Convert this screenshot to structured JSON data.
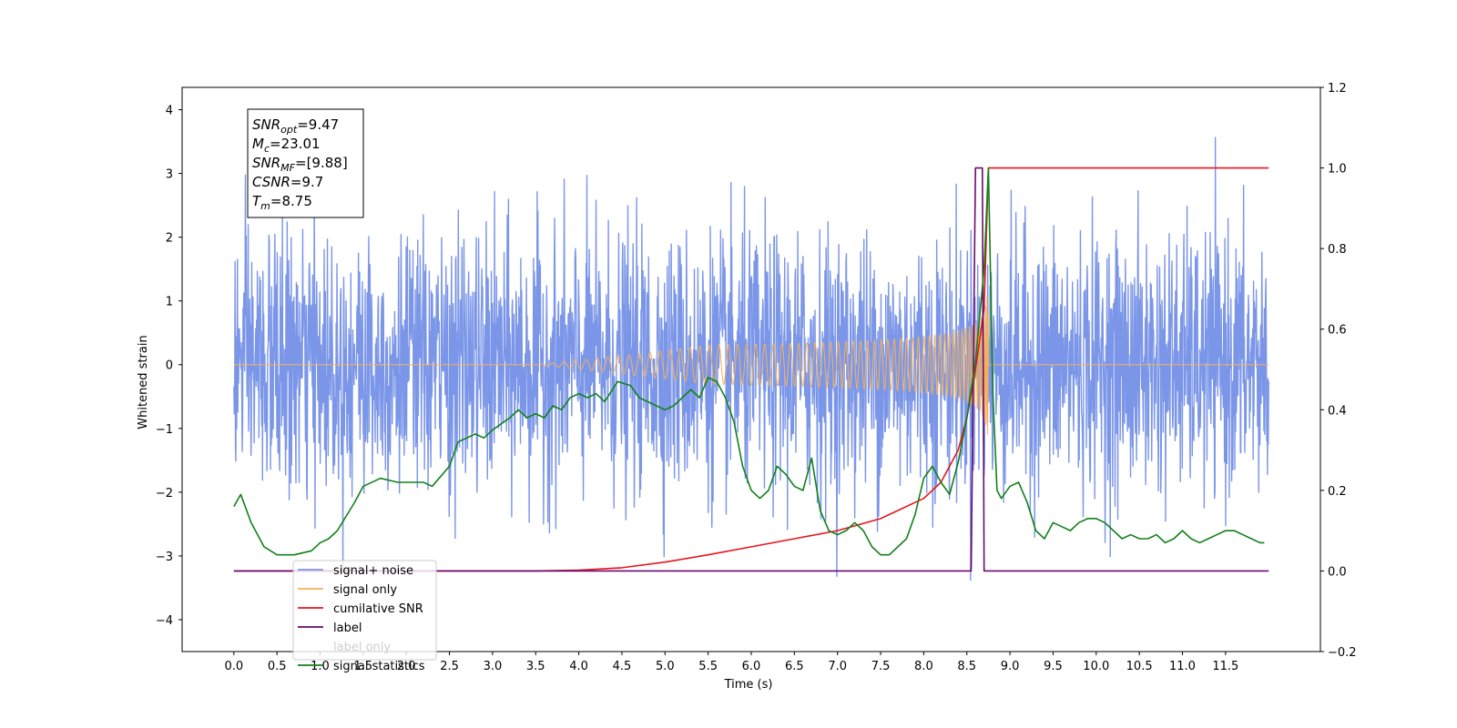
{
  "chart_data": {
    "type": "line",
    "xlabel": "Time (s)",
    "ylabel_left": "Whitened strain",
    "ylabel_right": "",
    "x_range": [
      -0.6,
      12.6
    ],
    "ylim_left": [
      -4.5,
      4.35
    ],
    "ylim_right": [
      -0.2,
      1.2
    ],
    "x_ticks": [
      "0.0",
      "0.5",
      "1.0",
      "1.5",
      "2.0",
      "2.5",
      "3.0",
      "3.5",
      "4.0",
      "4.5",
      "5.0",
      "5.5",
      "6.0",
      "6.5",
      "7.0",
      "7.5",
      "8.0",
      "8.5",
      "9.0",
      "9.5",
      "10.0",
      "10.5",
      "11.0",
      "11.5"
    ],
    "y_ticks_left": [
      "4",
      "3",
      "2",
      "1",
      "0",
      "−1",
      "−2",
      "−3",
      "−4"
    ],
    "y_ticks_right": [
      "1.2",
      "1.0",
      "0.8",
      "0.6",
      "0.4",
      "0.2",
      "0.0",
      "−0.2"
    ],
    "legend_position": "lower-left",
    "grid": false,
    "info_box": {
      "lines": [
        {
          "base": "SNR",
          "sub": "opt",
          "value": "=9.47"
        },
        {
          "base": "M",
          "sub": "c",
          "value": "=23.01"
        },
        {
          "base": "SNR",
          "sub": "MF",
          "value": "=[9.88]"
        },
        {
          "base": "CSNR",
          "sub": "",
          "value": "=9.7"
        },
        {
          "base": "T",
          "sub": "m",
          "value": "=8.75"
        }
      ]
    },
    "series": [
      {
        "name": "signal+ noise",
        "axis": "left",
        "color": "#7b96e8",
        "kind": "noise",
        "x_start": 0.0,
        "x_end": 12.0,
        "sigma": 1.0
      },
      {
        "name": "signal only",
        "axis": "left",
        "color": "#f5b15a",
        "kind": "chirp",
        "x_start": 0.0,
        "x_end": 12.0,
        "merger_time": 8.75,
        "peak_amplitude": 1.1
      },
      {
        "name": "cumilative SNR",
        "axis": "right",
        "color": "#e8141c",
        "points": [
          [
            0.0,
            0.0
          ],
          [
            3.5,
            0.0
          ],
          [
            4.0,
            0.002
          ],
          [
            4.5,
            0.008
          ],
          [
            5.0,
            0.022
          ],
          [
            5.5,
            0.04
          ],
          [
            6.0,
            0.06
          ],
          [
            6.5,
            0.08
          ],
          [
            7.0,
            0.1
          ],
          [
            7.5,
            0.13
          ],
          [
            8.0,
            0.18
          ],
          [
            8.2,
            0.22
          ],
          [
            8.4,
            0.3
          ],
          [
            8.5,
            0.38
          ],
          [
            8.6,
            0.5
          ],
          [
            8.7,
            0.65
          ],
          [
            8.75,
            1.0
          ],
          [
            12.0,
            1.0
          ]
        ]
      },
      {
        "name": "label",
        "axis": "right",
        "color": "#6a0a6e",
        "points": [
          [
            0.0,
            0.0
          ],
          [
            8.55,
            0.0
          ],
          [
            8.6,
            1.0
          ],
          [
            8.68,
            1.0
          ],
          [
            8.7,
            0.0
          ],
          [
            12.0,
            0.0
          ]
        ]
      },
      {
        "name": "label only",
        "axis": "right",
        "color": "#d8d8d8",
        "hidden_line": true,
        "points": []
      },
      {
        "name": "signal statistics",
        "axis": "right",
        "color": "#12801a",
        "points": [
          [
            0.0,
            0.16
          ],
          [
            0.08,
            0.19
          ],
          [
            0.2,
            0.12
          ],
          [
            0.35,
            0.06
          ],
          [
            0.5,
            0.04
          ],
          [
            0.7,
            0.04
          ],
          [
            0.9,
            0.05
          ],
          [
            1.0,
            0.07
          ],
          [
            1.1,
            0.08
          ],
          [
            1.2,
            0.1
          ],
          [
            1.4,
            0.17
          ],
          [
            1.5,
            0.21
          ],
          [
            1.7,
            0.23
          ],
          [
            1.9,
            0.22
          ],
          [
            2.0,
            0.22
          ],
          [
            2.2,
            0.22
          ],
          [
            2.3,
            0.21
          ],
          [
            2.5,
            0.26
          ],
          [
            2.6,
            0.32
          ],
          [
            2.7,
            0.33
          ],
          [
            2.8,
            0.34
          ],
          [
            2.9,
            0.33
          ],
          [
            3.0,
            0.35
          ],
          [
            3.2,
            0.38
          ],
          [
            3.3,
            0.4
          ],
          [
            3.4,
            0.38
          ],
          [
            3.5,
            0.39
          ],
          [
            3.6,
            0.38
          ],
          [
            3.7,
            0.41
          ],
          [
            3.8,
            0.4
          ],
          [
            3.9,
            0.43
          ],
          [
            4.0,
            0.44
          ],
          [
            4.1,
            0.43
          ],
          [
            4.2,
            0.44
          ],
          [
            4.3,
            0.42
          ],
          [
            4.45,
            0.47
          ],
          [
            4.6,
            0.46
          ],
          [
            4.7,
            0.43
          ],
          [
            4.8,
            0.42
          ],
          [
            4.9,
            0.41
          ],
          [
            5.0,
            0.4
          ],
          [
            5.1,
            0.41
          ],
          [
            5.2,
            0.43
          ],
          [
            5.3,
            0.45
          ],
          [
            5.4,
            0.43
          ],
          [
            5.5,
            0.48
          ],
          [
            5.6,
            0.47
          ],
          [
            5.7,
            0.43
          ],
          [
            5.8,
            0.37
          ],
          [
            5.9,
            0.26
          ],
          [
            6.0,
            0.2
          ],
          [
            6.1,
            0.18
          ],
          [
            6.2,
            0.2
          ],
          [
            6.3,
            0.26
          ],
          [
            6.4,
            0.24
          ],
          [
            6.5,
            0.21
          ],
          [
            6.6,
            0.2
          ],
          [
            6.7,
            0.28
          ],
          [
            6.8,
            0.15
          ],
          [
            6.9,
            0.1
          ],
          [
            7.0,
            0.09
          ],
          [
            7.1,
            0.1
          ],
          [
            7.2,
            0.12
          ],
          [
            7.3,
            0.1
          ],
          [
            7.4,
            0.06
          ],
          [
            7.5,
            0.04
          ],
          [
            7.6,
            0.04
          ],
          [
            7.7,
            0.06
          ],
          [
            7.8,
            0.08
          ],
          [
            7.9,
            0.14
          ],
          [
            8.0,
            0.23
          ],
          [
            8.1,
            0.26
          ],
          [
            8.2,
            0.22
          ],
          [
            8.3,
            0.19
          ],
          [
            8.4,
            0.27
          ],
          [
            8.5,
            0.38
          ],
          [
            8.6,
            0.52
          ],
          [
            8.7,
            0.75
          ],
          [
            8.75,
            1.0
          ],
          [
            8.8,
            0.45
          ],
          [
            8.85,
            0.2
          ],
          [
            8.9,
            0.18
          ],
          [
            9.0,
            0.21
          ],
          [
            9.1,
            0.22
          ],
          [
            9.2,
            0.17
          ],
          [
            9.3,
            0.1
          ],
          [
            9.4,
            0.08
          ],
          [
            9.5,
            0.12
          ],
          [
            9.6,
            0.11
          ],
          [
            9.7,
            0.1
          ],
          [
            9.8,
            0.12
          ],
          [
            9.9,
            0.13
          ],
          [
            10.0,
            0.13
          ],
          [
            10.1,
            0.12
          ],
          [
            10.2,
            0.1
          ],
          [
            10.3,
            0.08
          ],
          [
            10.4,
            0.09
          ],
          [
            10.5,
            0.08
          ],
          [
            10.6,
            0.08
          ],
          [
            10.7,
            0.09
          ],
          [
            10.8,
            0.07
          ],
          [
            10.9,
            0.08
          ],
          [
            11.0,
            0.1
          ],
          [
            11.1,
            0.08
          ],
          [
            11.2,
            0.07
          ],
          [
            11.3,
            0.08
          ],
          [
            11.4,
            0.09
          ],
          [
            11.5,
            0.1
          ],
          [
            11.6,
            0.1
          ],
          [
            11.7,
            0.09
          ],
          [
            11.8,
            0.08
          ],
          [
            11.9,
            0.07
          ],
          [
            11.95,
            0.07
          ]
        ]
      }
    ]
  }
}
